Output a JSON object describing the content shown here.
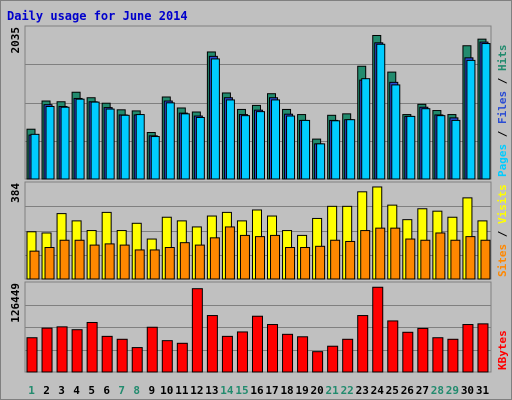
{
  "chart_data": {
    "type": "bar",
    "title": "Daily usage for June 2014",
    "days": [
      "1",
      "2",
      "3",
      "4",
      "5",
      "6",
      "7",
      "8",
      "9",
      "10",
      "11",
      "12",
      "13",
      "14",
      "15",
      "16",
      "17",
      "18",
      "19",
      "20",
      "21",
      "22",
      "23",
      "24",
      "25",
      "26",
      "27",
      "28",
      "29",
      "30",
      "31"
    ],
    "weekend_days": [
      "1",
      "7",
      "8",
      "14",
      "15",
      "21",
      "22",
      "28",
      "29"
    ],
    "panels": [
      {
        "key": "pages_files_hits",
        "ymax_label": "2035",
        "ymax": 2035,
        "series": [
          {
            "name": "Hits",
            "color": "#228b6e",
            "values": [
              680,
              1065,
              1055,
              1185,
              1110,
              1035,
              945,
              930,
              635,
              1120,
              970,
              915,
              1735,
              1175,
              950,
              1005,
              1165,
              950,
              880,
              545,
              870,
              890,
              1540,
              1960,
              1460,
              880,
              1020,
              935,
              880,
              1820,
              1910
            ]
          },
          {
            "name": "Files",
            "color": "#2a4cd3",
            "values": [
              600,
              1015,
              990,
              1100,
              1055,
              975,
              875,
              875,
              590,
              1065,
              900,
              860,
              1675,
              1110,
              880,
              940,
              1110,
              885,
              800,
              480,
              800,
              810,
              1350,
              1860,
              1320,
              855,
              980,
              875,
              835,
              1655,
              1870
            ]
          },
          {
            "name": "Pages",
            "color": "#00ccff",
            "values": [
              610,
              990,
              980,
              1090,
              1050,
              955,
              870,
              880,
              580,
              1040,
              890,
              840,
              1640,
              1080,
              865,
              920,
              1080,
              860,
              800,
              480,
              795,
              810,
              1370,
              1840,
              1285,
              855,
              960,
              865,
              800,
              1620,
              1850
            ]
          }
        ],
        "legend": [
          {
            "text": "Pages",
            "color": "#00ccff"
          },
          {
            "text": "Files",
            "color": "#2a4cd3"
          },
          {
            "text": "Hits",
            "color": "#228b6e"
          }
        ]
      },
      {
        "key": "sites_visits",
        "ymax_label": "384",
        "ymax": 384,
        "series": [
          {
            "name": "Visits",
            "color": "#ffff00",
            "values": [
              195,
              190,
              270,
              240,
              200,
              275,
              200,
              230,
              165,
              255,
              240,
              215,
              260,
              275,
              240,
              285,
              260,
              200,
              180,
              250,
              300,
              300,
              360,
              380,
              305,
              245,
              290,
              280,
              255,
              335,
              240
            ]
          },
          {
            "name": "Sites",
            "color": "#ff8800",
            "values": [
              115,
              130,
              160,
              160,
              140,
              145,
              140,
              120,
              120,
              130,
              150,
              140,
              170,
              215,
              180,
              175,
              180,
              130,
              130,
              135,
              160,
              155,
              200,
              210,
              210,
              165,
              160,
              190,
              160,
              175,
              160
            ]
          }
        ],
        "legend": [
          {
            "text": "Sites",
            "color": "#ff8800"
          },
          {
            "text": "Visits",
            "color": "#ffff00"
          }
        ]
      },
      {
        "key": "kbytes",
        "ymax_label": "126449",
        "ymax": 126449,
        "series": [
          {
            "name": "KBytes",
            "color": "#ff0000",
            "values": [
              50400,
              64500,
              66400,
              62200,
              72800,
              52400,
              48100,
              35900,
              65800,
              46100,
              42200,
              122500,
              83000,
              52400,
              58900,
              82000,
              69800,
              55400,
              51800,
              29900,
              37900,
              48100,
              83000,
              124600,
              75100,
              58400,
              64100,
              50400,
              48100,
              69800,
              70800
            ]
          }
        ],
        "legend": [
          {
            "text": "KBytes",
            "color": "#ff0000"
          }
        ]
      }
    ]
  }
}
